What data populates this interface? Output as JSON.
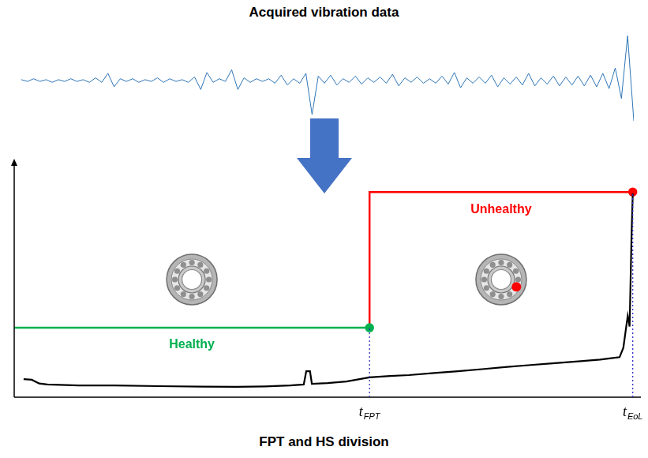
{
  "chart_data": [
    {
      "type": "line",
      "title": "Acquired vibration data",
      "color": "#2e75b6",
      "x": [
        0,
        1,
        2,
        3,
        4,
        5,
        6,
        7,
        8,
        9,
        10,
        11,
        12,
        13,
        14,
        15,
        16,
        17,
        18,
        19,
        20,
        21,
        22,
        23,
        24,
        25,
        26,
        27,
        28,
        29,
        30,
        31,
        32,
        33,
        34,
        35,
        36,
        37,
        38,
        39,
        40,
        41,
        42,
        43,
        44,
        45,
        46,
        47,
        48,
        49,
        50,
        51,
        52,
        53,
        54,
        55,
        56,
        57,
        58,
        59,
        60,
        61,
        62,
        63,
        64,
        65,
        66,
        67,
        68,
        69,
        70,
        71,
        72,
        73,
        74,
        75,
        76,
        77,
        78,
        79,
        80,
        81,
        82,
        83,
        84,
        85,
        86,
        87,
        88,
        89,
        90,
        91,
        92,
        93,
        94,
        95,
        96,
        97,
        98,
        99
      ],
      "values": [
        1,
        -1,
        2,
        -1,
        1,
        -2,
        1,
        -1,
        2,
        -1,
        1,
        -2,
        3,
        -2,
        8,
        -7,
        2,
        -1,
        2,
        -2,
        1,
        -1,
        3,
        -2,
        2,
        -1,
        1,
        -2,
        4,
        -10,
        9,
        -2,
        2,
        -1,
        12,
        -10,
        3,
        -2,
        2,
        -1,
        2,
        -3,
        6,
        -5,
        2,
        -3,
        8,
        -38,
        5,
        -3,
        6,
        -5,
        2,
        -2,
        5,
        -4,
        3,
        -2,
        4,
        -3,
        7,
        -6,
        3,
        -2,
        4,
        -3,
        2,
        -3,
        5,
        -4,
        9,
        -8,
        3,
        -3,
        4,
        -3,
        6,
        -7,
        3,
        -4,
        4,
        -5,
        8,
        -6,
        3,
        -4,
        5,
        -6,
        4,
        -5,
        5,
        -6,
        6,
        -7,
        8,
        -9,
        14,
        -20,
        50,
        -45
      ],
      "xlim": [
        0,
        99
      ],
      "ylim": [
        -60,
        60
      ],
      "tick_labels": false,
      "grid": false
    },
    {
      "type": "line",
      "title": "FPT and HS division",
      "xlim": [
        0,
        100
      ],
      "ylim": [
        0,
        100
      ],
      "tick_labels": false,
      "grid": false,
      "series": [
        {
          "color": "#000000",
          "x": [
            1.5,
            2.8,
            4,
            5.3,
            10.3,
            16,
            23,
            30,
            35.5,
            40,
            44,
            46.2,
            46.6,
            47.2,
            47.5,
            50,
            53,
            56.7,
            60,
            63,
            67,
            70.8,
            75,
            78.3,
            82,
            85.9,
            90,
            93.5,
            95,
            96.6,
            97.2,
            97.9,
            98.2,
            98.5,
            98.7
          ],
          "values": [
            7.7,
            7.4,
            5.8,
            5.4,
            5.0,
            5.0,
            4.7,
            4.5,
            4.4,
            4.6,
            5.0,
            5.4,
            11,
            11,
            5.7,
            6.0,
            6.7,
            8.4,
            9.0,
            9.4,
            10.3,
            11,
            12.0,
            12.8,
            13.6,
            14.4,
            15.2,
            16,
            16.5,
            17,
            21,
            34.6,
            30,
            68,
            86.6
          ]
        },
        {
          "name": "Healthy",
          "color": "#00b050",
          "x": [
            0,
            56.7
          ],
          "values": [
            29.5,
            29.5
          ]
        },
        {
          "name": "Unhealthy",
          "color": "#ff0000",
          "x": [
            56.7,
            56.7,
            98.7
          ],
          "values": [
            29.5,
            87.2,
            87.2
          ]
        }
      ],
      "markers": [
        {
          "x": 56.7,
          "label": "t",
          "subscript": "FPT"
        },
        {
          "x": 98.7,
          "label": "t",
          "subscript": "EoL"
        }
      ]
    }
  ]
}
